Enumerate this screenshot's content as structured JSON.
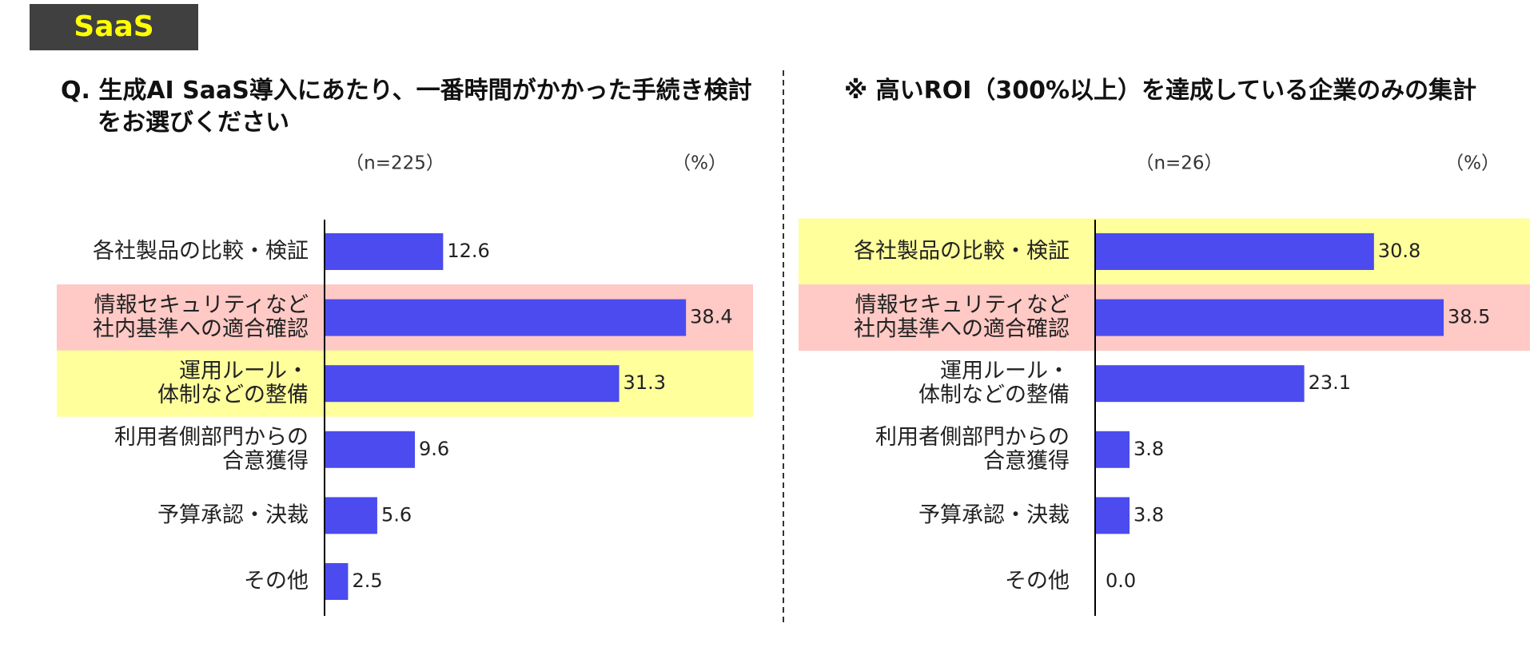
{
  "header": {
    "badge": "SaaS"
  },
  "chart_data": [
    {
      "type": "barh",
      "title": "Q. 生成AI SaaS導入にあたり、一番時間がかかった手続き検討をお選びください",
      "subtitle": "（n=225）",
      "unit": "（%）",
      "categories": [
        [
          "各社製品の比較・検証"
        ],
        [
          "情報セキュリティなど",
          "社内基準への適合確認"
        ],
        [
          "運用ルール・",
          "体制などの整備"
        ],
        [
          "利用者側部門からの",
          "合意獲得"
        ],
        [
          "予算承認・決裁"
        ],
        [
          "その他"
        ]
      ],
      "values": [
        12.6,
        38.4,
        31.3,
        9.6,
        5.6,
        2.5
      ],
      "row_colors": [
        null,
        "#ffc9c5",
        "#ffff9c",
        null,
        null,
        null
      ],
      "color": "#4b4bef",
      "xlim": [
        0,
        40
      ]
    },
    {
      "type": "barh",
      "title": "※ 高いROI（300%以上）を達成している企業のみの集計",
      "subtitle": "（n=26）",
      "unit": "（%）",
      "categories": [
        [
          "各社製品の比較・検証"
        ],
        [
          "情報セキュリティなど",
          "社内基準への適合確認"
        ],
        [
          "運用ルール・",
          "体制などの整備"
        ],
        [
          "利用者側部門からの",
          "合意獲得"
        ],
        [
          "予算承認・決裁"
        ],
        [
          "その他"
        ]
      ],
      "values": [
        30.8,
        38.5,
        23.1,
        3.8,
        3.8,
        0.0
      ],
      "value_labels": [
        "30.8",
        "38.5",
        "23.1",
        "3.8",
        "3.8",
        "0.0"
      ],
      "row_colors": [
        "#ffff9c",
        "#ffc9c5",
        null,
        null,
        null,
        null
      ],
      "color": "#4b4bef",
      "xlim": [
        0,
        40
      ]
    }
  ]
}
